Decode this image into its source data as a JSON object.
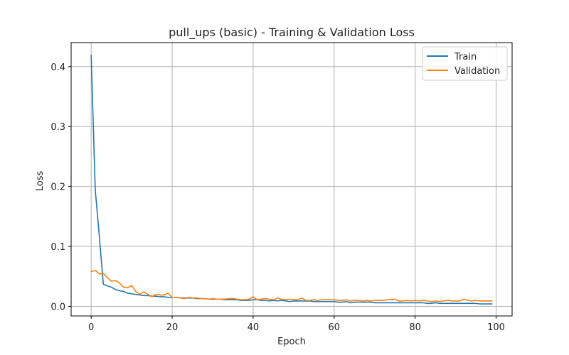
{
  "chart_data": {
    "type": "line",
    "title": "pull_ups (basic) - Training & Validation Loss",
    "xlabel": "Epoch",
    "ylabel": "Loss",
    "xlim": [
      -4.95,
      103.95
    ],
    "ylim": [
      -0.016,
      0.44
    ],
    "xticks": [
      0,
      20,
      40,
      60,
      80,
      100
    ],
    "yticks": [
      0.0,
      0.1,
      0.2,
      0.3,
      0.4
    ],
    "xtick_labels": [
      "0",
      "20",
      "40",
      "60",
      "80",
      "100"
    ],
    "ytick_labels": [
      "0.0",
      "0.1",
      "0.2",
      "0.3",
      "0.4"
    ],
    "grid": true,
    "legend_position": "top-right",
    "series": [
      {
        "name": "Train",
        "color": "#1f77b4",
        "x": [
          0,
          1,
          2,
          3,
          4,
          5,
          6,
          7,
          8,
          9,
          10,
          11,
          12,
          13,
          14,
          15,
          16,
          17,
          18,
          19,
          20,
          21,
          22,
          23,
          24,
          25,
          26,
          27,
          28,
          29,
          30,
          31,
          32,
          33,
          34,
          35,
          36,
          37,
          38,
          39,
          40,
          41,
          42,
          43,
          44,
          45,
          46,
          47,
          48,
          49,
          50,
          51,
          52,
          53,
          54,
          55,
          56,
          57,
          58,
          59,
          60,
          61,
          62,
          63,
          64,
          65,
          66,
          67,
          68,
          69,
          70,
          71,
          72,
          73,
          74,
          75,
          76,
          77,
          78,
          79,
          80,
          81,
          82,
          83,
          84,
          85,
          86,
          87,
          88,
          89,
          90,
          91,
          92,
          93,
          94,
          95,
          96,
          97,
          98,
          99
        ],
        "values": [
          0.419,
          0.195,
          0.118,
          0.037,
          0.034,
          0.032,
          0.028,
          0.026,
          0.025,
          0.022,
          0.021,
          0.02,
          0.019,
          0.018,
          0.018,
          0.017,
          0.017,
          0.016,
          0.016,
          0.015,
          0.015,
          0.015,
          0.014,
          0.014,
          0.014,
          0.014,
          0.013,
          0.013,
          0.013,
          0.012,
          0.012,
          0.012,
          0.012,
          0.011,
          0.011,
          0.011,
          0.011,
          0.01,
          0.01,
          0.01,
          0.011,
          0.011,
          0.01,
          0.01,
          0.009,
          0.01,
          0.009,
          0.01,
          0.009,
          0.008,
          0.009,
          0.009,
          0.009,
          0.009,
          0.009,
          0.008,
          0.008,
          0.008,
          0.008,
          0.008,
          0.008,
          0.007,
          0.007,
          0.008,
          0.006,
          0.007,
          0.007,
          0.007,
          0.007,
          0.007,
          0.006,
          0.006,
          0.006,
          0.006,
          0.006,
          0.006,
          0.006,
          0.006,
          0.006,
          0.006,
          0.006,
          0.006,
          0.006,
          0.005,
          0.005,
          0.006,
          0.005,
          0.005,
          0.005,
          0.005,
          0.005,
          0.005,
          0.005,
          0.005,
          0.005,
          0.005,
          0.004,
          0.004,
          0.004,
          0.004
        ]
      },
      {
        "name": "Validation",
        "color": "#ff7f0e",
        "x": [
          0,
          1,
          2,
          3,
          4,
          5,
          6,
          7,
          8,
          9,
          10,
          11,
          12,
          13,
          14,
          15,
          16,
          17,
          18,
          19,
          20,
          21,
          22,
          23,
          24,
          25,
          26,
          27,
          28,
          29,
          30,
          31,
          32,
          33,
          34,
          35,
          36,
          37,
          38,
          39,
          40,
          41,
          42,
          43,
          44,
          45,
          46,
          47,
          48,
          49,
          50,
          51,
          52,
          53,
          54,
          55,
          56,
          57,
          58,
          59,
          60,
          61,
          62,
          63,
          64,
          65,
          66,
          67,
          68,
          69,
          70,
          71,
          72,
          73,
          74,
          75,
          76,
          77,
          78,
          79,
          80,
          81,
          82,
          83,
          84,
          85,
          86,
          87,
          88,
          89,
          90,
          91,
          92,
          93,
          94,
          95,
          96,
          97,
          98,
          99
        ],
        "values": [
          0.058,
          0.06,
          0.054,
          0.055,
          0.048,
          0.042,
          0.043,
          0.039,
          0.032,
          0.031,
          0.035,
          0.025,
          0.02,
          0.024,
          0.02,
          0.016,
          0.02,
          0.019,
          0.019,
          0.022,
          0.015,
          0.015,
          0.014,
          0.013,
          0.015,
          0.014,
          0.014,
          0.013,
          0.013,
          0.012,
          0.013,
          0.012,
          0.012,
          0.012,
          0.013,
          0.013,
          0.012,
          0.011,
          0.011,
          0.012,
          0.016,
          0.011,
          0.012,
          0.013,
          0.012,
          0.011,
          0.014,
          0.012,
          0.011,
          0.012,
          0.011,
          0.011,
          0.014,
          0.01,
          0.01,
          0.011,
          0.01,
          0.011,
          0.011,
          0.011,
          0.011,
          0.01,
          0.01,
          0.011,
          0.009,
          0.01,
          0.01,
          0.009,
          0.01,
          0.009,
          0.01,
          0.01,
          0.01,
          0.011,
          0.011,
          0.012,
          0.009,
          0.009,
          0.01,
          0.009,
          0.01,
          0.009,
          0.01,
          0.009,
          0.008,
          0.009,
          0.008,
          0.009,
          0.01,
          0.009,
          0.009,
          0.009,
          0.012,
          0.01,
          0.009,
          0.01,
          0.009,
          0.009,
          0.009,
          0.009
        ]
      }
    ]
  }
}
